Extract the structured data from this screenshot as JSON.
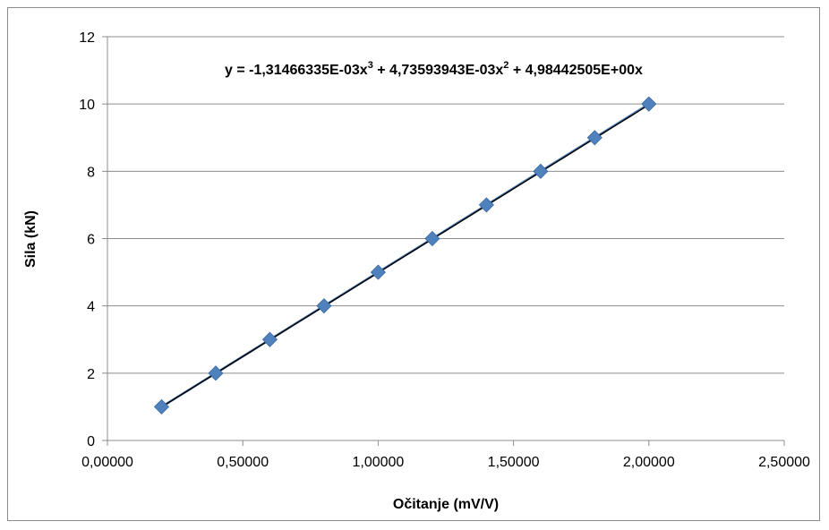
{
  "chart_data": {
    "type": "scatter",
    "title": "",
    "xlabel": "Očitanje (mV/V)",
    "ylabel": "Sila (kN)",
    "xlim": [
      0,
      2.5
    ],
    "ylim": [
      0,
      12
    ],
    "x_ticks": [
      "0,00000",
      "0,50000",
      "1,00000",
      "1,50000",
      "2,00000",
      "2,50000"
    ],
    "y_ticks": [
      "0",
      "2",
      "4",
      "6",
      "8",
      "10",
      "12"
    ],
    "grid": "horizontal",
    "legend": "none",
    "series": [
      {
        "x": [
          0.2,
          0.4,
          0.6,
          0.8,
          1.0,
          1.2,
          1.4,
          1.6,
          1.8,
          2.0
        ],
        "y": [
          1,
          2,
          3,
          4,
          5,
          6,
          7,
          8,
          9,
          10
        ],
        "marker": "diamond",
        "color": "#4f81bd"
      }
    ],
    "trendline": {
      "type": "polynomial",
      "coefficients": [
        -0.00131466335,
        0.00473593943,
        4.98442505,
        0
      ],
      "color": "#000000",
      "x_range": [
        0.2,
        2.0
      ]
    },
    "equation_label": {
      "prefix": "y = -1,31466335E-03x",
      "sup1": "3",
      "mid1": " + 4,73593943E-03x",
      "sup2": "2",
      "tail": " + 4,98442505E+00x"
    }
  }
}
